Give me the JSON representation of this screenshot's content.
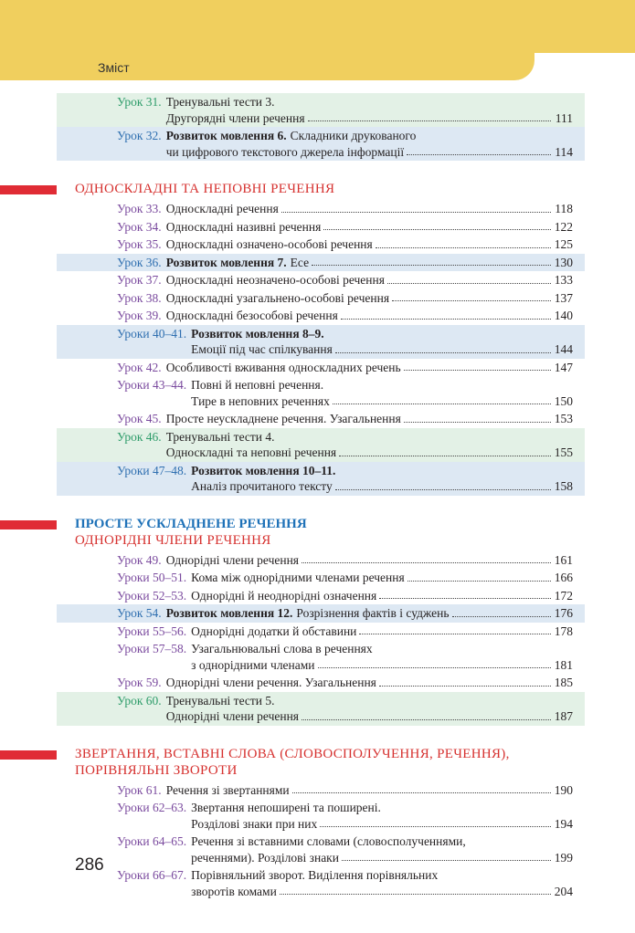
{
  "header": {
    "title": "Зміст"
  },
  "groups": [
    {
      "entries": [
        {
          "label": "Урок 31.",
          "lines": [
            "Тренувальні тести 3.",
            "Другорядні члени речення"
          ],
          "page": 111,
          "bg": "green"
        },
        {
          "label": "Урок 32.",
          "lines": [
            {
              "bold": "Розвиток мовлення 6.",
              "text": "Складники друкованого"
            },
            "чи цифрового текстового джерела інформації"
          ],
          "page": 114,
          "bg": "blue"
        }
      ]
    },
    {
      "heading": [
        "ОДНОСКЛАДНІ ТА НЕПОВНІ РЕЧЕННЯ"
      ],
      "entries": [
        {
          "label": "Урок 33.",
          "lines": [
            "Односкладні речення"
          ],
          "page": 118
        },
        {
          "label": "Урок 34.",
          "lines": [
            "Односкладні називні речення"
          ],
          "page": 122
        },
        {
          "label": "Урок 35.",
          "lines": [
            "Односкладні означено-особові речення"
          ],
          "page": 125
        },
        {
          "label": "Урок 36.",
          "lines": [
            {
              "bold": "Розвиток мовлення 7.",
              "text": "Есе"
            }
          ],
          "page": 130,
          "bg": "blue"
        },
        {
          "label": "Урок 37.",
          "lines": [
            "Односкладні неозначено-особові речення"
          ],
          "page": 133
        },
        {
          "label": "Урок 38.",
          "lines": [
            "Односкладні узагальнено-особові речення"
          ],
          "page": 137
        },
        {
          "label": "Урок 39.",
          "lines": [
            "Односкладні безособові речення"
          ],
          "page": 140
        },
        {
          "label": "Уроки 40–41.",
          "lines": [
            {
              "bold": "Розвиток мовлення 8–9."
            },
            "Емоції під час спілкування"
          ],
          "page": 144,
          "bg": "blue"
        },
        {
          "label": "Урок 42.",
          "lines": [
            "Особливості вживання односкладних речень"
          ],
          "page": 147
        },
        {
          "label": "Уроки 43–44.",
          "lines": [
            "Повні й неповні речення.",
            "Тире в неповних реченнях"
          ],
          "page": 150
        },
        {
          "label": "Урок 45.",
          "lines": [
            "Просте неускладнене речення. Узагальнення"
          ],
          "page": 153
        },
        {
          "label": "Урок 46.",
          "lines": [
            "Тренувальні тести 4.",
            "Односкладні та неповні речення"
          ],
          "page": 155,
          "bg": "green"
        },
        {
          "label": "Уроки 47–48.",
          "lines": [
            {
              "bold": "Розвиток мовлення 10–11."
            },
            "Аналіз прочитаного тексту"
          ],
          "page": 158,
          "bg": "blue"
        }
      ]
    },
    {
      "theme": "ПРОСТЕ УСКЛАДНЕНЕ РЕЧЕННЯ",
      "heading": [
        "ОДНОРІДНІ ЧЛЕНИ РЕЧЕННЯ"
      ],
      "entries": [
        {
          "label": "Урок 49.",
          "lines": [
            "Однорідні члени речення"
          ],
          "page": 161
        },
        {
          "label": "Уроки 50–51.",
          "lines": [
            "Кома між однорідними членами речення"
          ],
          "page": 166
        },
        {
          "label": "Уроки 52–53.",
          "lines": [
            "Однорідні й неоднорідні означення"
          ],
          "page": 172
        },
        {
          "label": "Урок 54.",
          "lines": [
            {
              "bold": "Розвиток мовлення 12.",
              "text": "Розрізнення фактів і суджень"
            }
          ],
          "page": 176,
          "bg": "blue"
        },
        {
          "label": "Уроки 55–56.",
          "lines": [
            "Однорідні додатки й обставини"
          ],
          "page": 178
        },
        {
          "label": "Уроки 57–58.",
          "lines": [
            "Узагальнювальні слова в реченнях",
            "з однорідними членами"
          ],
          "page": 181
        },
        {
          "label": "Урок 59.",
          "lines": [
            "Однорідні члени речення. Узагальнення"
          ],
          "page": 185
        },
        {
          "label": "Урок 60.",
          "lines": [
            "Тренувальні тести 5.",
            "Однорідні члени речення"
          ],
          "page": 187,
          "bg": "green"
        }
      ]
    },
    {
      "heading": [
        "ЗВЕРТАННЯ, ВСТАВНІ СЛОВА (СЛОВОСПОЛУЧЕННЯ, РЕЧЕННЯ),",
        "ПОРІВНЯЛЬНІ ЗВОРОТИ"
      ],
      "entries": [
        {
          "label": "Урок 61.",
          "lines": [
            "Речення зі звертаннями"
          ],
          "page": 190
        },
        {
          "label": "Уроки 62–63.",
          "lines": [
            "Звертання непоширені та поширені.",
            "Розділові знаки при них"
          ],
          "page": 194
        },
        {
          "label": "Уроки 64–65.",
          "lines": [
            "Речення зі вставними словами (словосполученнями,",
            "реченнями). Розділові знаки"
          ],
          "page": 199
        },
        {
          "label": "Уроки 66–67.",
          "lines": [
            "Порівняльний зворот. Виділення порівняльних",
            "зворотів комами"
          ],
          "page": 204
        }
      ]
    }
  ],
  "page_number": 286
}
